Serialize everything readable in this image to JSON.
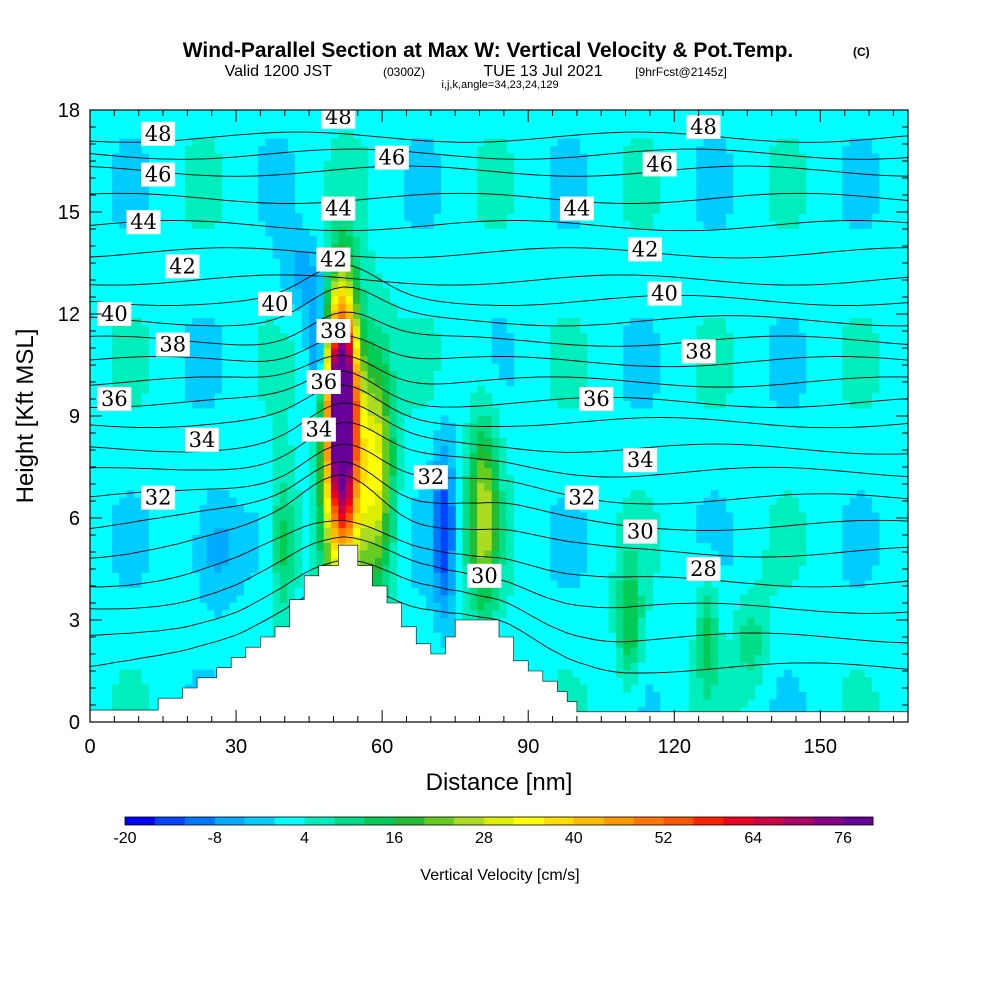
{
  "title": {
    "main": "Wind-Parallel Section at Max W: Vertical Velocity & Pot.Temp.",
    "copyright": "(C)",
    "valid_prefix": "Valid 1200 JST",
    "valid_utc": "(0300Z)",
    "valid_date": "TUE 13 Jul 2021",
    "valid_fcst": "[9hrFcst@2145z]",
    "indices": "i,j,k,angle=34,23,24,129"
  },
  "chart_data": {
    "type": "heatmap",
    "xlabel": "Distance [nm]",
    "ylabel": "Height [Kft MSL]",
    "xlim": [
      0,
      168
    ],
    "ylim": [
      0,
      18
    ],
    "x_ticks": [
      0,
      30,
      60,
      90,
      120,
      150
    ],
    "x_tick_labels": [
      "0",
      "30",
      "60",
      "90",
      "120",
      "150"
    ],
    "y_ticks": [
      0,
      3,
      6,
      9,
      12,
      15,
      18
    ],
    "y_tick_labels": [
      "0",
      "3",
      "6",
      "9",
      "12",
      "15",
      "18"
    ],
    "background_value_color": "#00ffff",
    "colorbar": {
      "label": "Vertical Velocity [cm/s]",
      "min": -20,
      "step": 4,
      "tick_labels": [
        "-20",
        "-8",
        "4",
        "16",
        "28",
        "40",
        "52",
        "64",
        "76"
      ],
      "colors": [
        "#0000ff",
        "#0044ff",
        "#0077ff",
        "#00aaff",
        "#00ccff",
        "#00ffff",
        "#00eebb",
        "#00dd88",
        "#00cc55",
        "#22bb33",
        "#66cc22",
        "#aadd22",
        "#ddee00",
        "#ffff00",
        "#ffdd00",
        "#ffbb00",
        "#ff9900",
        "#ff7700",
        "#ff5500",
        "#ff2200",
        "#ee0022",
        "#cc0044",
        "#aa0066",
        "#880088",
        "#660099"
      ]
    },
    "terrain_kft": [
      [
        0,
        0.35
      ],
      [
        14,
        0.35
      ],
      [
        14,
        0.7
      ],
      [
        19,
        0.7
      ],
      [
        19,
        1.0
      ],
      [
        22,
        1.0
      ],
      [
        22,
        1.3
      ],
      [
        26,
        1.3
      ],
      [
        26,
        1.6
      ],
      [
        29,
        1.6
      ],
      [
        29,
        1.9
      ],
      [
        32,
        1.9
      ],
      [
        32,
        2.2
      ],
      [
        35,
        2.2
      ],
      [
        35,
        2.5
      ],
      [
        38,
        2.5
      ],
      [
        38,
        2.8
      ],
      [
        41,
        2.8
      ],
      [
        41,
        3.6
      ],
      [
        44,
        3.6
      ],
      [
        44,
        4.3
      ],
      [
        47,
        4.3
      ],
      [
        47,
        4.6
      ],
      [
        51,
        4.6
      ],
      [
        51,
        5.2
      ],
      [
        55,
        5.2
      ],
      [
        55,
        4.6
      ],
      [
        58,
        4.6
      ],
      [
        58,
        4.0
      ],
      [
        61,
        4.0
      ],
      [
        61,
        3.5
      ],
      [
        64,
        3.5
      ],
      [
        64,
        2.8
      ],
      [
        67,
        2.8
      ],
      [
        67,
        2.3
      ],
      [
        70,
        2.3
      ],
      [
        70,
        2.0
      ],
      [
        73,
        2.0
      ],
      [
        73,
        2.5
      ],
      [
        75,
        2.5
      ],
      [
        75,
        3.0
      ],
      [
        84,
        3.0
      ],
      [
        84,
        2.5
      ],
      [
        87,
        2.5
      ],
      [
        87,
        1.8
      ],
      [
        90,
        1.8
      ],
      [
        90,
        1.5
      ],
      [
        93,
        1.5
      ],
      [
        93,
        1.2
      ],
      [
        96,
        1.2
      ],
      [
        96,
        0.9
      ],
      [
        98,
        0.9
      ],
      [
        98,
        0.6
      ],
      [
        100,
        0.6
      ],
      [
        100,
        0.3
      ],
      [
        168,
        0.3
      ]
    ],
    "w_features": [
      {
        "x": 51,
        "z": 9.5,
        "sx": 2.2,
        "sz": 2.2,
        "value": 74
      },
      {
        "x": 51,
        "z": 7.3,
        "sx": 2.8,
        "sz": 2.8,
        "value": 40
      },
      {
        "x": 58,
        "z": 7.4,
        "sx": 2.4,
        "sz": 2.4,
        "value": 30
      },
      {
        "x": 80,
        "z": 6.0,
        "sx": 2.2,
        "sz": 2.0,
        "value": 24
      },
      {
        "x": 39,
        "z": 5.2,
        "sx": 2.0,
        "sz": 1.5,
        "value": 14
      },
      {
        "x": 110,
        "z": 2.8,
        "sx": 1.8,
        "sz": 1.3,
        "value": 14
      },
      {
        "x": 126,
        "z": 2.5,
        "sx": 1.5,
        "sz": 1.2,
        "value": 12
      },
      {
        "x": 46,
        "z": 10.8,
        "sx": 1.4,
        "sz": 1.2,
        "value": -16
      },
      {
        "x": 72,
        "z": 5.6,
        "sx": 1.6,
        "sz": 1.8,
        "value": -16
      },
      {
        "x": 25,
        "z": 5.0,
        "sx": 3.5,
        "sz": 1.2,
        "value": -10
      },
      {
        "x": 43,
        "z": 13.0,
        "sx": 3.0,
        "sz": 0.8,
        "value": -8
      },
      {
        "x": 135,
        "z": 2.2,
        "sx": 2.5,
        "sz": 1.0,
        "value": 8
      }
    ],
    "theta_contours": [
      {
        "value": 48,
        "base": 17.2
      },
      {
        "value": 47,
        "base": 16.7
      },
      {
        "value": 46,
        "base": 16.2
      },
      {
        "value": 45,
        "base": 15.4
      },
      {
        "value": 44,
        "base": 14.6
      },
      {
        "value": 43,
        "base": 13.8
      },
      {
        "value": 42,
        "base": 13.0
      },
      {
        "value": 41,
        "base": 12.4
      },
      {
        "value": 40,
        "base": 11.8
      },
      {
        "value": 39,
        "base": 11.2
      },
      {
        "value": 38,
        "base": 10.6
      },
      {
        "value": 37,
        "base": 10.0
      },
      {
        "value": 36,
        "base": 9.4
      },
      {
        "value": 35,
        "base": 8.8
      },
      {
        "value": 34,
        "base": 8.0
      },
      {
        "value": 33,
        "base": 7.3
      },
      {
        "value": 32,
        "base": 6.5
      },
      {
        "value": 31,
        "base": 5.7
      },
      {
        "value": 30,
        "base": 4.9
      },
      {
        "value": 29,
        "base": 4.0
      },
      {
        "value": 28,
        "base": 3.2
      },
      {
        "value": 27,
        "base": 2.3
      },
      {
        "value": 26,
        "base": 1.4
      }
    ],
    "contour_labels": [
      {
        "text": "48",
        "x": 14,
        "z": 17.3
      },
      {
        "text": "48",
        "x": 51,
        "z": 17.8
      },
      {
        "text": "48",
        "x": 126,
        "z": 17.5
      },
      {
        "text": "46",
        "x": 14,
        "z": 16.1
      },
      {
        "text": "46",
        "x": 62,
        "z": 16.6
      },
      {
        "text": "46",
        "x": 117,
        "z": 16.4
      },
      {
        "text": "44",
        "x": 11,
        "z": 14.7
      },
      {
        "text": "44",
        "x": 51,
        "z": 15.1
      },
      {
        "text": "44",
        "x": 100,
        "z": 15.1
      },
      {
        "text": "42",
        "x": 19,
        "z": 13.4
      },
      {
        "text": "42",
        "x": 50,
        "z": 13.6
      },
      {
        "text": "42",
        "x": 114,
        "z": 13.9
      },
      {
        "text": "40",
        "x": 5,
        "z": 12.0
      },
      {
        "text": "40",
        "x": 38,
        "z": 12.3
      },
      {
        "text": "40",
        "x": 118,
        "z": 12.6
      },
      {
        "text": "38",
        "x": 17,
        "z": 11.1
      },
      {
        "text": "38",
        "x": 50,
        "z": 11.5
      },
      {
        "text": "38",
        "x": 125,
        "z": 10.9
      },
      {
        "text": "36",
        "x": 5,
        "z": 9.5
      },
      {
        "text": "36",
        "x": 48,
        "z": 10.0
      },
      {
        "text": "36",
        "x": 104,
        "z": 9.5
      },
      {
        "text": "34",
        "x": 23,
        "z": 8.3
      },
      {
        "text": "34",
        "x": 47,
        "z": 8.6
      },
      {
        "text": "34",
        "x": 113,
        "z": 7.7
      },
      {
        "text": "32",
        "x": 14,
        "z": 6.6
      },
      {
        "text": "32",
        "x": 70,
        "z": 7.2
      },
      {
        "text": "32",
        "x": 101,
        "z": 6.6
      },
      {
        "text": "30",
        "x": 81,
        "z": 4.3
      },
      {
        "text": "30",
        "x": 113,
        "z": 5.6
      },
      {
        "text": "28",
        "x": 126,
        "z": 4.5
      }
    ]
  }
}
